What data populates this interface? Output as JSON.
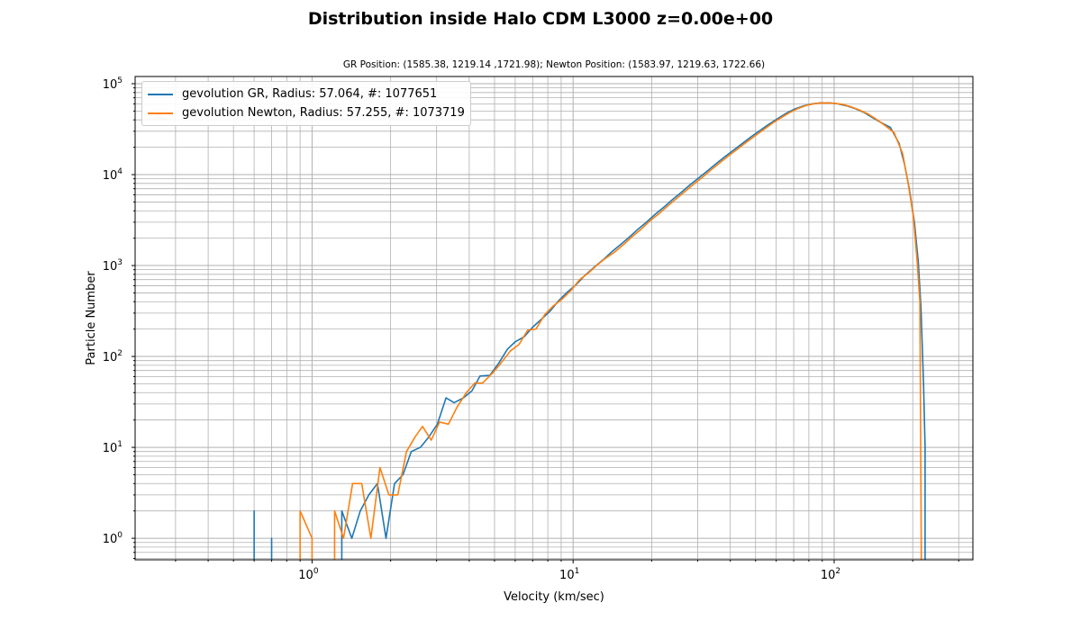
{
  "chart_data": {
    "type": "line",
    "title": "Distribution inside Halo CDM L3000 z=0.00e+00",
    "subtitle": "GR Position: (1585.38, 1219.14 ,1721.98); Newton Position: (1583.97, 1219.63, 1722.66)",
    "xlabel": "Velocity (km/sec)",
    "ylabel": "Particle Number",
    "xscale": "log",
    "yscale": "log",
    "xlim": [
      0.21,
      340
    ],
    "ylim": [
      0.58,
      120000
    ],
    "grid": true,
    "grid_which": "both",
    "legend_position": "top-left",
    "series": [
      {
        "name": "gevolution GR, Radius: 57.064, #: 1077651",
        "color": "#1f77b4",
        "points": [
          [
            0.6,
            2
          ],
          [
            0.7,
            1
          ],
          [
            1.3,
            2
          ],
          [
            1.42,
            1
          ],
          [
            1.53,
            2
          ],
          [
            1.65,
            3
          ],
          [
            1.78,
            4
          ],
          [
            1.92,
            1
          ],
          [
            2.07,
            4
          ],
          [
            2.23,
            5
          ],
          [
            2.4,
            9
          ],
          [
            2.6,
            10
          ],
          [
            2.8,
            13
          ],
          [
            3.02,
            18
          ],
          [
            3.26,
            35
          ],
          [
            3.5,
            31
          ],
          [
            3.8,
            35
          ],
          [
            4.1,
            42
          ],
          [
            4.4,
            61
          ],
          [
            4.8,
            62
          ],
          [
            5.2,
            85
          ],
          [
            5.6,
            120
          ],
          [
            6.0,
            145
          ],
          [
            6.5,
            165
          ],
          [
            7.0,
            210
          ],
          [
            7.6,
            260
          ],
          [
            8.2,
            320
          ],
          [
            8.8,
            410
          ],
          [
            9.5,
            510
          ],
          [
            10.3,
            620
          ],
          [
            11.1,
            780
          ],
          [
            12,
            950
          ],
          [
            13,
            1150
          ],
          [
            14,
            1400
          ],
          [
            15.2,
            1700
          ],
          [
            16.4,
            2050
          ],
          [
            17.7,
            2500
          ],
          [
            19.1,
            3000
          ],
          [
            20.6,
            3650
          ],
          [
            22.3,
            4400
          ],
          [
            24,
            5300
          ],
          [
            26,
            6400
          ],
          [
            28,
            7700
          ],
          [
            30.3,
            9200
          ],
          [
            32.7,
            11000
          ],
          [
            35.3,
            13200
          ],
          [
            38.1,
            15700
          ],
          [
            41.2,
            18600
          ],
          [
            44.5,
            22000
          ],
          [
            48,
            26000
          ],
          [
            51.9,
            30500
          ],
          [
            56,
            35500
          ],
          [
            60.5,
            41000
          ],
          [
            65.3,
            47000
          ],
          [
            70.5,
            52500
          ],
          [
            76.2,
            57000
          ],
          [
            82.3,
            60000
          ],
          [
            88.8,
            61500
          ],
          [
            95.9,
            61500
          ],
          [
            103.6,
            60000
          ],
          [
            111.9,
            57000
          ],
          [
            120.8,
            53000
          ],
          [
            130.5,
            48000
          ],
          [
            140.9,
            42000
          ],
          [
            152.2,
            37000
          ],
          [
            164.3,
            33000
          ],
          [
            177.4,
            22000
          ],
          [
            186,
            13000
          ],
          [
            194,
            7000
          ],
          [
            203,
            3000
          ],
          [
            210,
            1100
          ],
          [
            215,
            350
          ],
          [
            220,
            50
          ],
          [
            223,
            10
          ]
        ]
      },
      {
        "name": "gevolution Newton, Radius: 57.255, #: 1073719",
        "color": "#ff7f0e",
        "points": [
          [
            0.9,
            2
          ],
          [
            1.0,
            1
          ],
          [
            1.22,
            2
          ],
          [
            1.32,
            1
          ],
          [
            1.43,
            4
          ],
          [
            1.55,
            4
          ],
          [
            1.68,
            1
          ],
          [
            1.82,
            6
          ],
          [
            1.97,
            3
          ],
          [
            2.13,
            3
          ],
          [
            2.3,
            9
          ],
          [
            2.48,
            13
          ],
          [
            2.65,
            17
          ],
          [
            2.86,
            12
          ],
          [
            3.08,
            19
          ],
          [
            3.33,
            18
          ],
          [
            3.6,
            28
          ],
          [
            3.9,
            40
          ],
          [
            4.2,
            51
          ],
          [
            4.5,
            51
          ],
          [
            4.9,
            65
          ],
          [
            5.3,
            85
          ],
          [
            5.75,
            115
          ],
          [
            6.2,
            135
          ],
          [
            6.7,
            195
          ],
          [
            7.2,
            200
          ],
          [
            7.8,
            290
          ],
          [
            8.4,
            360
          ],
          [
            9.1,
            430
          ],
          [
            9.8,
            530
          ],
          [
            10.6,
            700
          ],
          [
            11.4,
            820
          ],
          [
            12.3,
            1000
          ],
          [
            13.3,
            1200
          ],
          [
            14.4,
            1400
          ],
          [
            15.6,
            1700
          ],
          [
            16.9,
            2100
          ],
          [
            18.2,
            2500
          ],
          [
            19.7,
            3100
          ],
          [
            21.3,
            3700
          ],
          [
            23,
            4500
          ],
          [
            24.8,
            5400
          ],
          [
            26.8,
            6500
          ],
          [
            28.9,
            7800
          ],
          [
            31.2,
            9300
          ],
          [
            33.7,
            11200
          ],
          [
            36.4,
            13400
          ],
          [
            39.3,
            16000
          ],
          [
            42.5,
            19000
          ],
          [
            45.9,
            22500
          ],
          [
            49.6,
            26500
          ],
          [
            53.5,
            31000
          ],
          [
            57.8,
            36500
          ],
          [
            62.4,
            42000
          ],
          [
            67.4,
            48000
          ],
          [
            72.8,
            53500
          ],
          [
            78.6,
            58000
          ],
          [
            84.9,
            60500
          ],
          [
            91.7,
            61500
          ],
          [
            99,
            61000
          ],
          [
            106.9,
            59500
          ],
          [
            115.5,
            56000
          ],
          [
            124.7,
            51500
          ],
          [
            134.7,
            46500
          ],
          [
            145.4,
            40500
          ],
          [
            157,
            34500
          ],
          [
            169.6,
            29000
          ],
          [
            183,
            17000
          ],
          [
            192,
            8000
          ],
          [
            201,
            3500
          ],
          [
            208,
            1100
          ],
          [
            213,
            400
          ],
          [
            216,
            0.3
          ]
        ]
      }
    ],
    "x_major_ticks": [
      {
        "value": 1,
        "base": "10",
        "exp": "0"
      },
      {
        "value": 10,
        "base": "10",
        "exp": "1"
      },
      {
        "value": 100,
        "base": "10",
        "exp": "2"
      }
    ],
    "y_major_ticks": [
      {
        "value": 1,
        "base": "10",
        "exp": "0"
      },
      {
        "value": 10,
        "base": "10",
        "exp": "1"
      },
      {
        "value": 100,
        "base": "10",
        "exp": "2"
      },
      {
        "value": 1000,
        "base": "10",
        "exp": "3"
      },
      {
        "value": 10000,
        "base": "10",
        "exp": "4"
      },
      {
        "value": 100000,
        "base": "10",
        "exp": "5"
      }
    ]
  }
}
